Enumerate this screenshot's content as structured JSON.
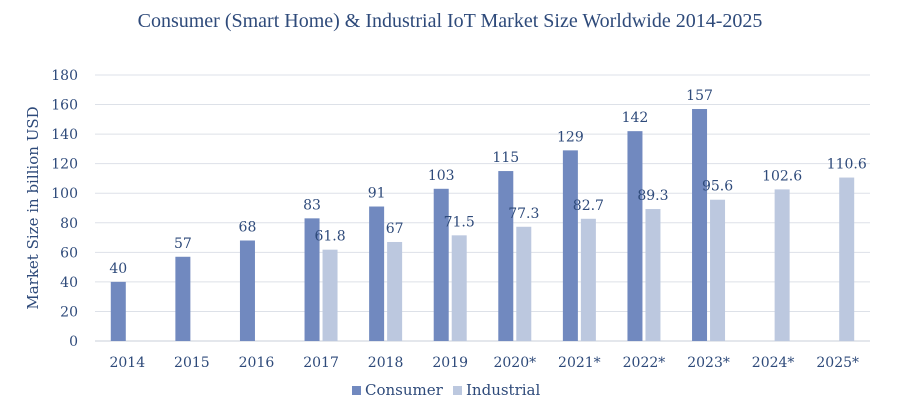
{
  "chart_data": {
    "type": "bar",
    "title": "Consumer (Smart Home) & Industrial IoT Market Size Worldwide 2014-2025",
    "ylabel": "Market Size in billion USD",
    "xlabel": "",
    "ylim": [
      0,
      180
    ],
    "yticks": [
      0,
      20,
      40,
      60,
      80,
      100,
      120,
      140,
      160,
      180
    ],
    "grid": true,
    "legend": "bottom",
    "categories": [
      "2014",
      "2015",
      "2016",
      "2017",
      "2018",
      "2019",
      "2020*",
      "2021*",
      "2022*",
      "2023*",
      "2024*",
      "2025*"
    ],
    "series": [
      {
        "name": "Consumer",
        "color": "#7189bf",
        "values": [
          40,
          57,
          68,
          83,
          91,
          103,
          115,
          129,
          142,
          157,
          null,
          null
        ],
        "labels": [
          "40",
          "57",
          "68",
          "83",
          "91",
          "103",
          "115",
          "129",
          "142",
          "157",
          "",
          ""
        ]
      },
      {
        "name": "Industrial",
        "color": "#bcc8df",
        "values": [
          null,
          null,
          null,
          61.8,
          67,
          71.5,
          77.3,
          82.7,
          89.3,
          95.6,
          102.6,
          110.6
        ],
        "labels": [
          "",
          "",
          "",
          "61.8",
          "67",
          "71.5",
          "77.3",
          "82.7",
          "89.3",
          "95.6",
          "102.6",
          "110.6"
        ]
      }
    ]
  }
}
